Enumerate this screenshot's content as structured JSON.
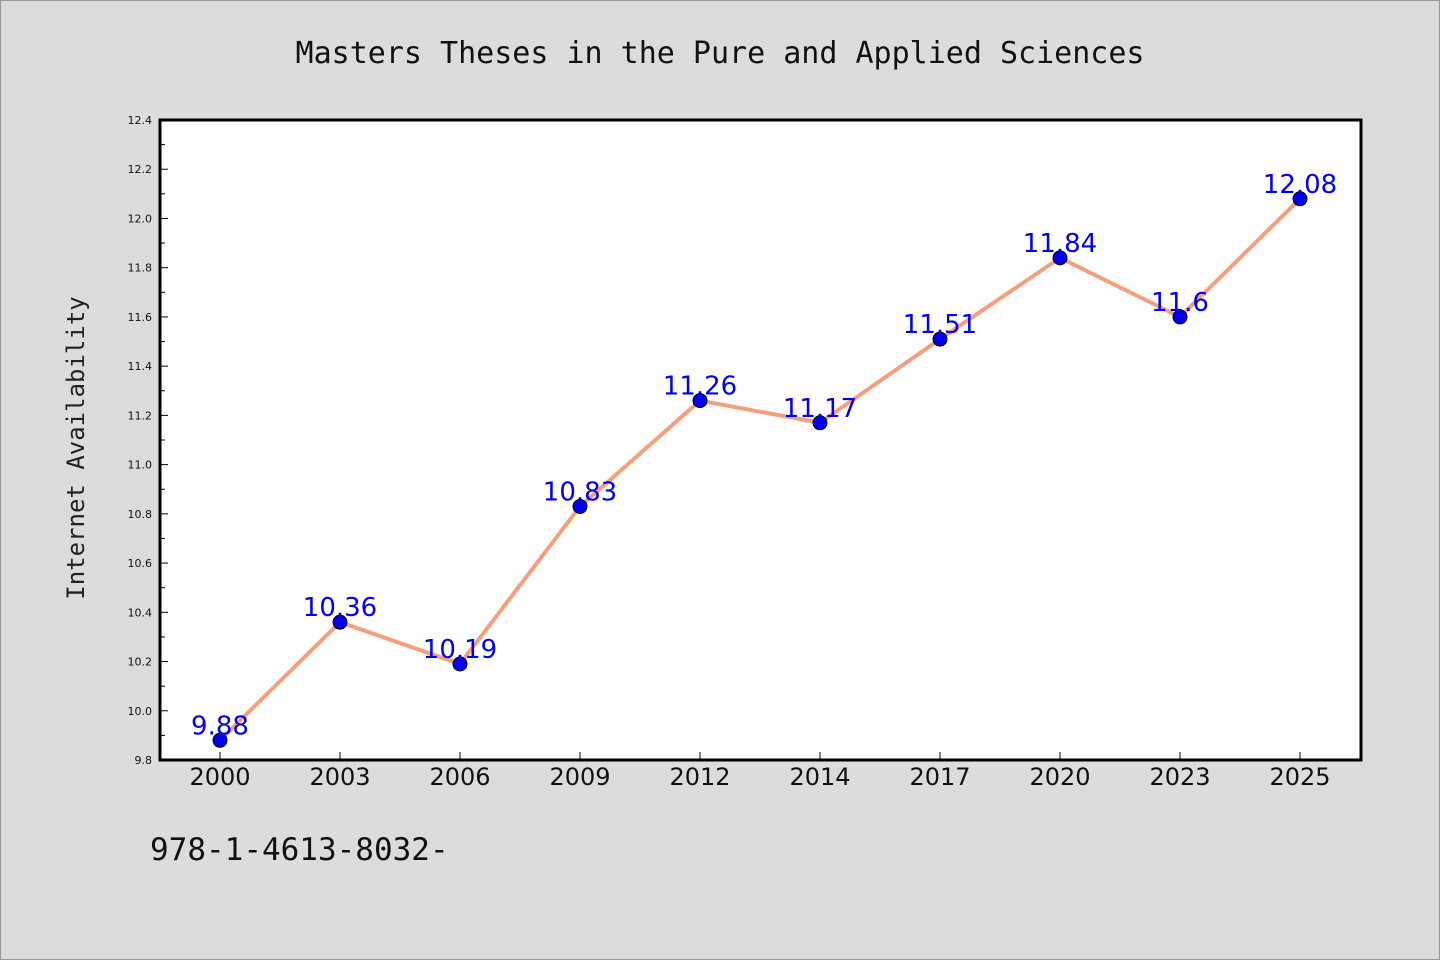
{
  "chart_data": {
    "type": "line",
    "title": "Masters Theses in the Pure and Applied Sciences",
    "xlabel": "",
    "ylabel": "Internet Availability",
    "categories": [
      "2000",
      "2003",
      "2006",
      "2009",
      "2012",
      "2014",
      "2017",
      "2020",
      "2023",
      "2025"
    ],
    "series": [
      {
        "values": [
          9.88,
          10.36,
          10.19,
          10.83,
          11.26,
          11.17,
          11.51,
          11.84,
          11.6,
          12.08
        ],
        "data_labels": [
          "9.88",
          "10.36",
          "10.19",
          "10.83",
          "11.26",
          "11.17",
          "11.51",
          "11.84",
          "11.6",
          "12.08"
        ],
        "line_color": "#f4a07f",
        "marker_color": "#0000ee",
        "label_color": "#0000ee"
      }
    ],
    "ylim": [
      9.8,
      12.4
    ],
    "yticks": [
      "9.8",
      "10.0",
      "10.2",
      "10.4",
      "10.6",
      "10.8",
      "11.0",
      "11.2",
      "11.4",
      "11.6",
      "11.8",
      "12.0",
      "12.2",
      "12.4"
    ],
    "grid": false,
    "legend": "none"
  },
  "footnote": "978-1-4613-8032-",
  "colors": {
    "background": "#dcdcdc",
    "plot_background": "#ffffff",
    "axis": "#000000"
  }
}
